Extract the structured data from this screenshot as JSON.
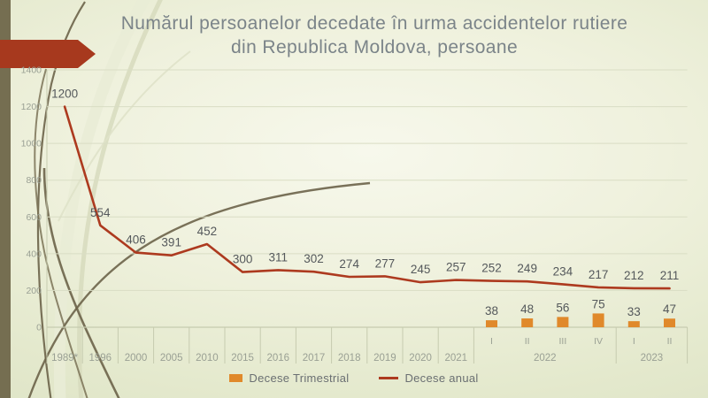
{
  "slide": {
    "title_line1": "Numărul persoanelor decedate în urma accidentelor rutiere",
    "title_line2": "din Republica Moldova, persoane"
  },
  "colors": {
    "title_text": "#7b8489",
    "line_series": "#ad3a1f",
    "bar_series": "#e0892b",
    "data_label": "#54585b",
    "axis_text": "#9aa094",
    "grid_line": "#d9ddc4",
    "axis_line": "#c6cbaf",
    "left_strip": "#756e51",
    "accent_arrow": "#a7391e"
  },
  "chart_data": {
    "type": "combo-line-bar",
    "title": "Numărul persoanelor decedate în urma accidentelor rutiere din Republica Moldova, persoane",
    "categories": [
      "1989*",
      "1996",
      "2000",
      "2005",
      "2010",
      "2015",
      "2016",
      "2017",
      "2018",
      "2019",
      "2020",
      "2021",
      "2022-I",
      "2022-II",
      "2022-III",
      "2022-IV",
      "2023-I",
      "2023-II"
    ],
    "axis": {
      "year_cells": [
        "1989*",
        "1996",
        "2000",
        "2005",
        "2010",
        "2015",
        "2016",
        "2017",
        "2018",
        "2019",
        "2020",
        "2021"
      ],
      "quarter_cells": [
        "I",
        "II",
        "III",
        "IV",
        "I",
        "II"
      ],
      "quarter_groups": [
        {
          "label": "2022",
          "span": 4
        },
        {
          "label": "2023",
          "span": 2
        }
      ]
    },
    "series": [
      {
        "name": "Decese Trimestrial",
        "type": "bar",
        "color": "#e0892b",
        "values": [
          null,
          null,
          null,
          null,
          null,
          null,
          null,
          null,
          null,
          null,
          null,
          null,
          38,
          48,
          56,
          75,
          33,
          47
        ]
      },
      {
        "name": "Decese anual",
        "type": "line",
        "color": "#ad3a1f",
        "values": [
          1200,
          554,
          406,
          391,
          452,
          300,
          311,
          302,
          274,
          277,
          245,
          257,
          252,
          249,
          234,
          217,
          212,
          211
        ]
      }
    ],
    "ylim": [
      0,
      1400
    ],
    "yticks": [
      0,
      200,
      400,
      600,
      800,
      1000,
      1200,
      1400
    ],
    "grid": true,
    "data_labels": true,
    "legend_position": "bottom"
  }
}
